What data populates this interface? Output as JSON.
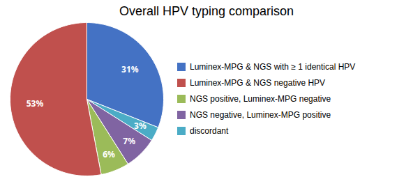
{
  "chart_data": {
    "type": "pie",
    "title": "Overall HPV typing  comparison",
    "values": [
      31,
      3,
      7,
      6,
      53
    ],
    "value_labels": [
      "31%",
      "3%",
      "7%",
      "6%",
      "53%"
    ],
    "colors": [
      "#4472c4",
      "#4bacc6",
      "#8064a2",
      "#9bbb59",
      "#c0504d"
    ],
    "data_labels": true,
    "legend": "right",
    "series": [
      {
        "name": "Luminex-MPG & NGS with ≥ 1 identical HPV",
        "color": "#4472c4"
      },
      {
        "name": "Luminex-MPG & NGS negative HPV",
        "color": "#c0504d"
      },
      {
        "name": "NGS positive, Luminex-MPG negative",
        "color": "#9bbb59"
      },
      {
        "name": "NGS negative, Luminex-MPG positive",
        "color": "#8064a2"
      },
      {
        "name": "discordant",
        "color": "#4bacc6"
      }
    ]
  }
}
